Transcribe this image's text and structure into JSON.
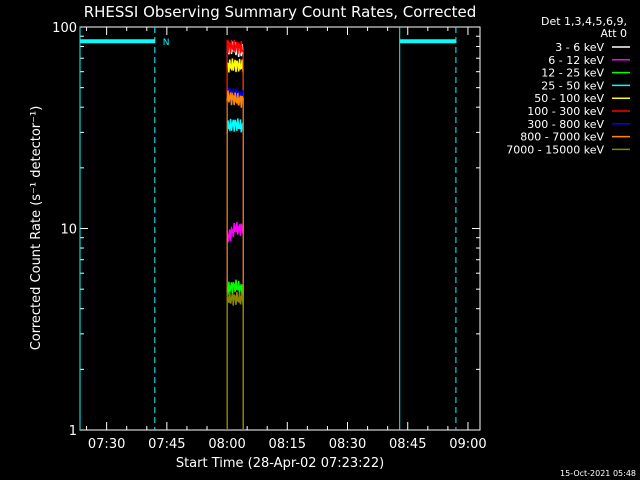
{
  "chart_data": {
    "type": "line",
    "title": "RHESSI Observing Summary Count Rates, Corrected",
    "xlabel": "Start Time (28-Apr-02 07:23:22)",
    "ylabel": "Corrected Count Rate (s⁻¹ detector⁻¹)",
    "yscale": "log",
    "xlim": [
      "07:23:22",
      "09:03:00"
    ],
    "ylim": [
      1,
      100
    ],
    "x_ticks": [
      "07:30",
      "07:45",
      "08:00",
      "08:15",
      "08:30",
      "08:45",
      "09:00"
    ],
    "y_ticks": [
      "1",
      "10",
      "100"
    ],
    "legend_header": [
      "Det 1,3,4,5,6,9,",
      "Att 0"
    ],
    "legend_position": "right",
    "annotations": [
      {
        "label": "N",
        "x": "07:42"
      }
    ],
    "series": [
      {
        "name": "3 - 6 keV",
        "color": "#ffffff",
        "x": [
          "08:00",
          "08:02",
          "08:04"
        ],
        "values": [
          80,
          78,
          76
        ]
      },
      {
        "name": "6 - 12 keV",
        "color": "#ff00ff",
        "x": [
          "08:00",
          "08:02",
          "08:04"
        ],
        "values": [
          9,
          10,
          10
        ]
      },
      {
        "name": "12 - 25 keV",
        "color": "#00ff00",
        "x": [
          "08:00",
          "08:02",
          "08:04"
        ],
        "values": [
          5,
          5.2,
          5
        ]
      },
      {
        "name": "25 - 50 keV",
        "color": "#00ffff",
        "x": [
          "08:00",
          "08:02",
          "08:04"
        ],
        "values": [
          32,
          33,
          32
        ]
      },
      {
        "name": "50 - 100 keV",
        "color": "#ffff00",
        "x": [
          "08:00",
          "08:02",
          "08:04"
        ],
        "values": [
          64,
          65,
          64
        ]
      },
      {
        "name": "100 - 300 keV",
        "color": "#ff0000",
        "x": [
          "08:00",
          "08:02",
          "08:04"
        ],
        "values": [
          81,
          80,
          79
        ]
      },
      {
        "name": "300 - 800 keV",
        "color": "#0000ff",
        "x": [
          "08:00",
          "08:02",
          "08:04"
        ],
        "values": [
          47,
          46,
          45
        ]
      },
      {
        "name": "800 - 7000 keV",
        "color": "#ff8800",
        "x": [
          "08:00",
          "08:02",
          "08:04"
        ],
        "values": [
          45,
          44,
          43
        ]
      },
      {
        "name": "7000 - 15000 keV",
        "color": "#888800",
        "x": [
          "08:00",
          "08:02",
          "08:04"
        ],
        "values": [
          4.5,
          4.5,
          4.5
        ]
      }
    ],
    "attenuator_bars": [
      {
        "start": "07:23:22",
        "end": "07:42",
        "value": 85
      },
      {
        "start": "08:43",
        "end": "08:57",
        "value": 85
      }
    ],
    "boundaries": [
      {
        "time": "07:23:22",
        "style": "solid",
        "color": "#00ffff"
      },
      {
        "time": "07:42",
        "style": "dashed",
        "color": "#00ffff"
      },
      {
        "time": "08:43",
        "style": "solid",
        "color": "#00ffff"
      },
      {
        "time": "08:57",
        "style": "dashed",
        "color": "#00ffff"
      }
    ]
  },
  "footer": {
    "timestamp": "15-Oct-2021 05:48"
  }
}
